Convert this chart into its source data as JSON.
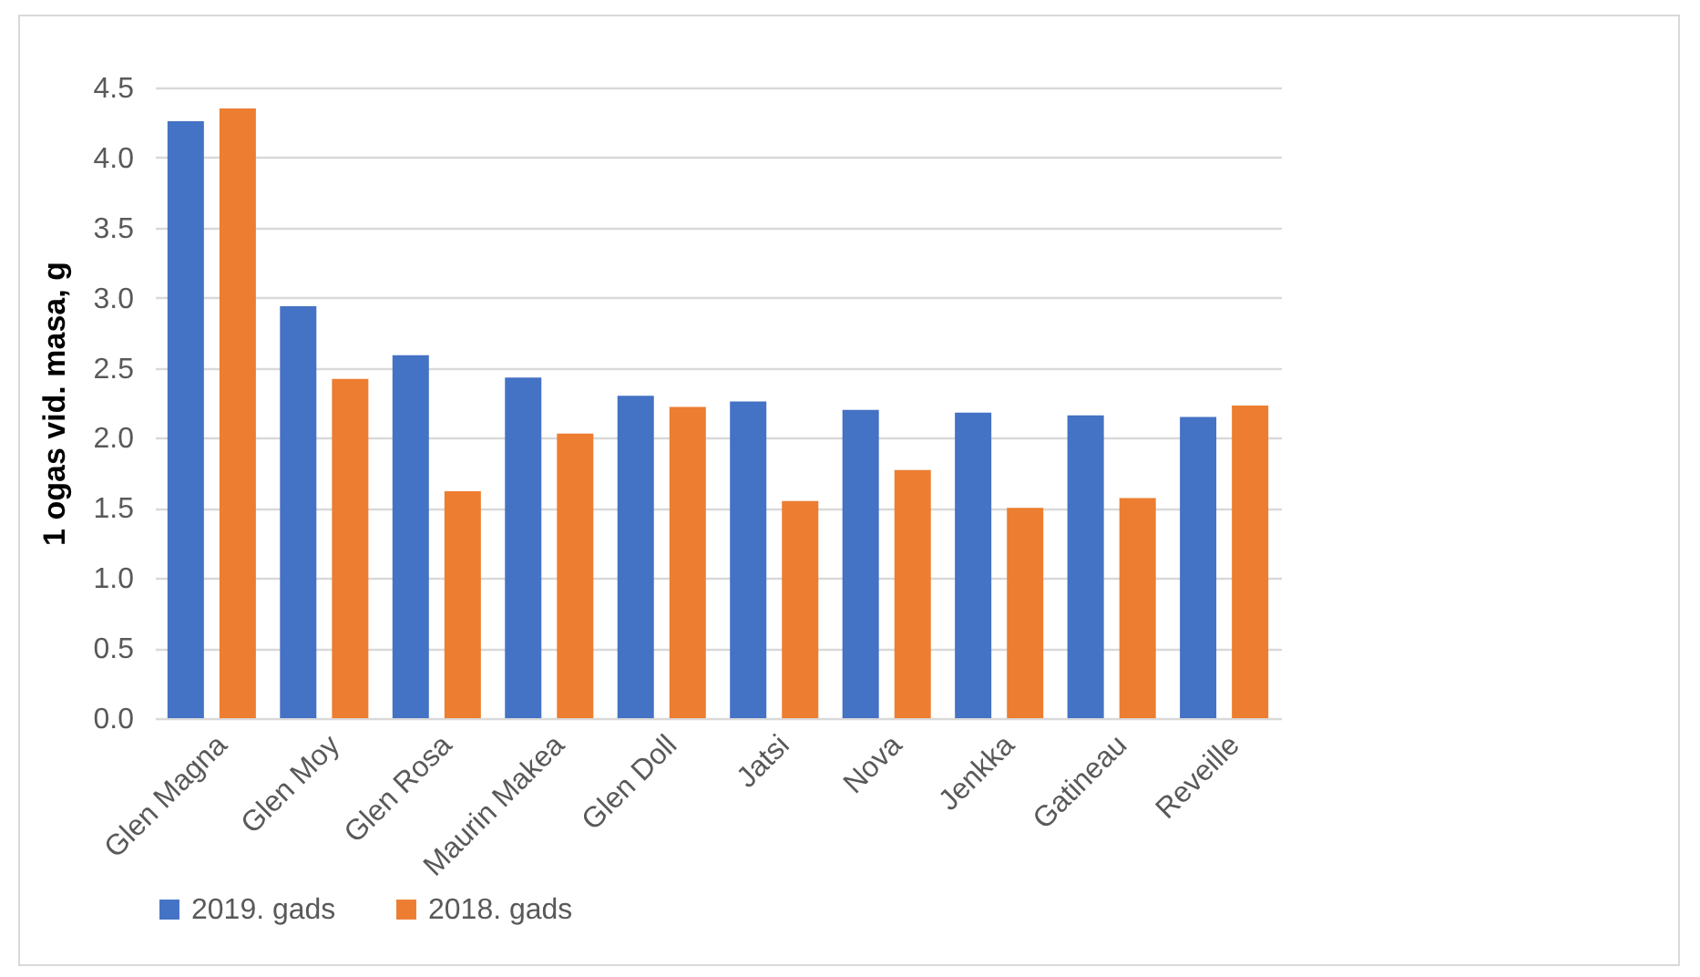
{
  "chart_data": {
    "type": "bar",
    "ylabel": "1 ogas vid. masa, g",
    "categories": [
      "Glen Magna",
      "Glen Moy",
      "Glen Rosa",
      "Maurin Makea",
      "Glen Doll",
      "Jatsi",
      "Nova",
      "Jenkka",
      "Gatineau",
      "Reveille"
    ],
    "series": [
      {
        "name": "2019. gads",
        "color": "#4472c4",
        "values": [
          4.26,
          2.94,
          2.59,
          2.43,
          2.3,
          2.26,
          2.2,
          2.18,
          2.16,
          2.15
        ]
      },
      {
        "name": "2018. gads",
        "color": "#ed7d31",
        "values": [
          4.35,
          2.42,
          1.62,
          2.03,
          2.22,
          1.55,
          1.77,
          1.5,
          1.57,
          2.23
        ]
      }
    ],
    "ylim": [
      0,
      4.5
    ],
    "yticks": [
      {
        "value": 0,
        "label": "0.0"
      },
      {
        "value": 0.5,
        "label": "0.5"
      },
      {
        "value": 1,
        "label": "1.0"
      },
      {
        "value": 1.5,
        "label": "1.5"
      },
      {
        "value": 2,
        "label": "2.0"
      },
      {
        "value": 2.5,
        "label": "2.5"
      },
      {
        "value": 3,
        "label": "3.0"
      },
      {
        "value": 3.5,
        "label": "3.5"
      },
      {
        "value": 4,
        "label": "4.0"
      },
      {
        "value": 4.5,
        "label": "4.5"
      }
    ],
    "grid": "y",
    "legend": "bottom"
  }
}
